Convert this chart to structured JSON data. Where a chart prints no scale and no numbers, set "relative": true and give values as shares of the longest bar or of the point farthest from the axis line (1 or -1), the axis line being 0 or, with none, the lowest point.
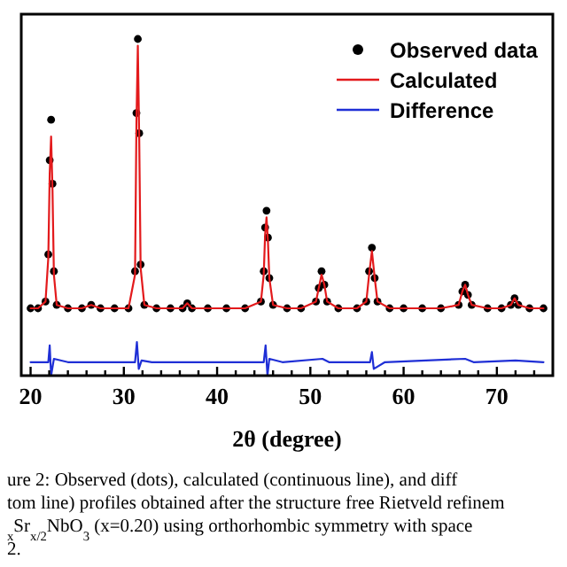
{
  "chart_data": {
    "type": "line",
    "relative": true,
    "xlabel": "2θ (degree)",
    "xlim": [
      19,
      76
    ],
    "xticks": [
      20,
      {
        "value": 22,
        "label": null
      },
      {
        "value": 24,
        "label": null
      },
      {
        "value": 26,
        "label": null
      },
      {
        "value": 28,
        "label": null
      },
      30,
      {
        "value": 32,
        "label": null
      },
      {
        "value": 34,
        "label": null
      },
      {
        "value": 36,
        "label": null
      },
      {
        "value": 38,
        "label": null
      },
      40,
      {
        "value": 42,
        "label": null
      },
      {
        "value": 44,
        "label": null
      },
      {
        "value": 46,
        "label": null
      },
      {
        "value": 48,
        "label": null
      },
      50,
      {
        "value": 52,
        "label": null
      },
      {
        "value": 54,
        "label": null
      },
      {
        "value": 56,
        "label": null
      },
      {
        "value": 58,
        "label": null
      },
      60,
      {
        "value": 62,
        "label": null
      },
      {
        "value": 64,
        "label": null
      },
      {
        "value": 66,
        "label": null
      },
      {
        "value": 68,
        "label": null
      },
      70,
      {
        "value": 72,
        "label": null
      },
      {
        "value": 74,
        "label": null
      }
    ],
    "tick_labels": "x",
    "legend": "top right",
    "series": [
      {
        "name": "Observed data",
        "type": "scatter",
        "color": "#000000",
        "x": [
          20,
          20.8,
          21.6,
          21.9,
          22.05,
          22.2,
          22.35,
          22.5,
          22.8,
          24,
          25.5,
          26.5,
          27.5,
          29,
          30.5,
          31.2,
          31.35,
          31.5,
          31.65,
          31.8,
          32.2,
          33.5,
          35,
          36.3,
          36.8,
          37.3,
          39,
          41,
          43,
          44.7,
          45.0,
          45.15,
          45.3,
          45.45,
          45.6,
          46,
          47.5,
          49,
          50.6,
          50.9,
          51.2,
          51.5,
          51.8,
          53,
          55,
          56.0,
          56.3,
          56.6,
          56.9,
          57.2,
          58.5,
          60,
          62,
          64,
          65.9,
          66.3,
          66.6,
          66.9,
          67.3,
          69,
          70.5,
          71.5,
          71.9,
          72.3,
          73.5,
          75
        ],
        "values": [
          0.2,
          0.2,
          0.22,
          0.36,
          0.64,
          0.76,
          0.57,
          0.31,
          0.21,
          0.2,
          0.2,
          0.21,
          0.2,
          0.2,
          0.2,
          0.31,
          0.78,
          1.0,
          0.72,
          0.33,
          0.21,
          0.2,
          0.2,
          0.2,
          0.215,
          0.2,
          0.2,
          0.2,
          0.2,
          0.22,
          0.31,
          0.44,
          0.49,
          0.41,
          0.29,
          0.21,
          0.2,
          0.2,
          0.22,
          0.26,
          0.31,
          0.27,
          0.22,
          0.2,
          0.2,
          0.22,
          0.31,
          0.38,
          0.29,
          0.22,
          0.2,
          0.2,
          0.2,
          0.2,
          0.21,
          0.25,
          0.27,
          0.24,
          0.21,
          0.2,
          0.2,
          0.21,
          0.23,
          0.21,
          0.2,
          0.2
        ]
      },
      {
        "name": "Calculated",
        "color": "#e31a1c",
        "x": [
          20,
          20.8,
          21.6,
          21.9,
          22.05,
          22.2,
          22.35,
          22.5,
          22.8,
          24,
          25.5,
          26.5,
          27.5,
          29,
          30.5,
          31.2,
          31.35,
          31.5,
          31.65,
          31.8,
          32.2,
          33.5,
          35,
          36.3,
          36.8,
          37.3,
          39,
          41,
          43,
          44.7,
          45.0,
          45.15,
          45.3,
          45.45,
          45.6,
          46,
          47.5,
          49,
          50.6,
          50.9,
          51.2,
          51.5,
          51.8,
          53,
          55,
          56.0,
          56.3,
          56.6,
          56.9,
          57.2,
          58.5,
          60,
          62,
          64,
          65.9,
          66.3,
          66.6,
          66.9,
          67.3,
          69,
          70.5,
          71.5,
          71.9,
          72.3,
          73.5,
          75
        ],
        "values": [
          0.2,
          0.2,
          0.22,
          0.35,
          0.6,
          0.71,
          0.55,
          0.3,
          0.21,
          0.2,
          0.2,
          0.21,
          0.2,
          0.2,
          0.2,
          0.3,
          0.75,
          0.98,
          0.7,
          0.32,
          0.21,
          0.2,
          0.2,
          0.2,
          0.215,
          0.2,
          0.2,
          0.2,
          0.2,
          0.22,
          0.3,
          0.42,
          0.47,
          0.4,
          0.29,
          0.21,
          0.2,
          0.2,
          0.22,
          0.26,
          0.3,
          0.27,
          0.22,
          0.2,
          0.2,
          0.22,
          0.3,
          0.37,
          0.29,
          0.22,
          0.2,
          0.2,
          0.2,
          0.2,
          0.21,
          0.25,
          0.27,
          0.24,
          0.21,
          0.2,
          0.2,
          0.21,
          0.23,
          0.21,
          0.2,
          0.2
        ]
      },
      {
        "name": "Difference",
        "color": "#1f2fd6",
        "x": [
          20,
          21.9,
          22.05,
          22.2,
          22.5,
          24,
          31.2,
          31.4,
          31.6,
          31.9,
          33,
          45.0,
          45.2,
          45.4,
          45.6,
          47,
          51.3,
          52,
          56.4,
          56.6,
          56.8,
          58,
          66.6,
          67.5,
          72,
          75
        ],
        "values": [
          0.04,
          0.04,
          0.09,
          0.0,
          0.05,
          0.04,
          0.04,
          0.1,
          0.02,
          0.045,
          0.04,
          0.04,
          0.09,
          0.0,
          0.05,
          0.04,
          0.05,
          0.04,
          0.04,
          0.07,
          0.02,
          0.04,
          0.05,
          0.04,
          0.045,
          0.04
        ]
      }
    ],
    "annotations": [
      "ure 2: Observed (dots), calculated (continuous line), and diff",
      "tom line) profiles obtained after the structure free Rietveld refinem",
      "$_{x}$Sr$_{x/2}$NbO$_{3}$ (x=0.20) using orthorhombic symmetry with space",
      "2."
    ]
  }
}
